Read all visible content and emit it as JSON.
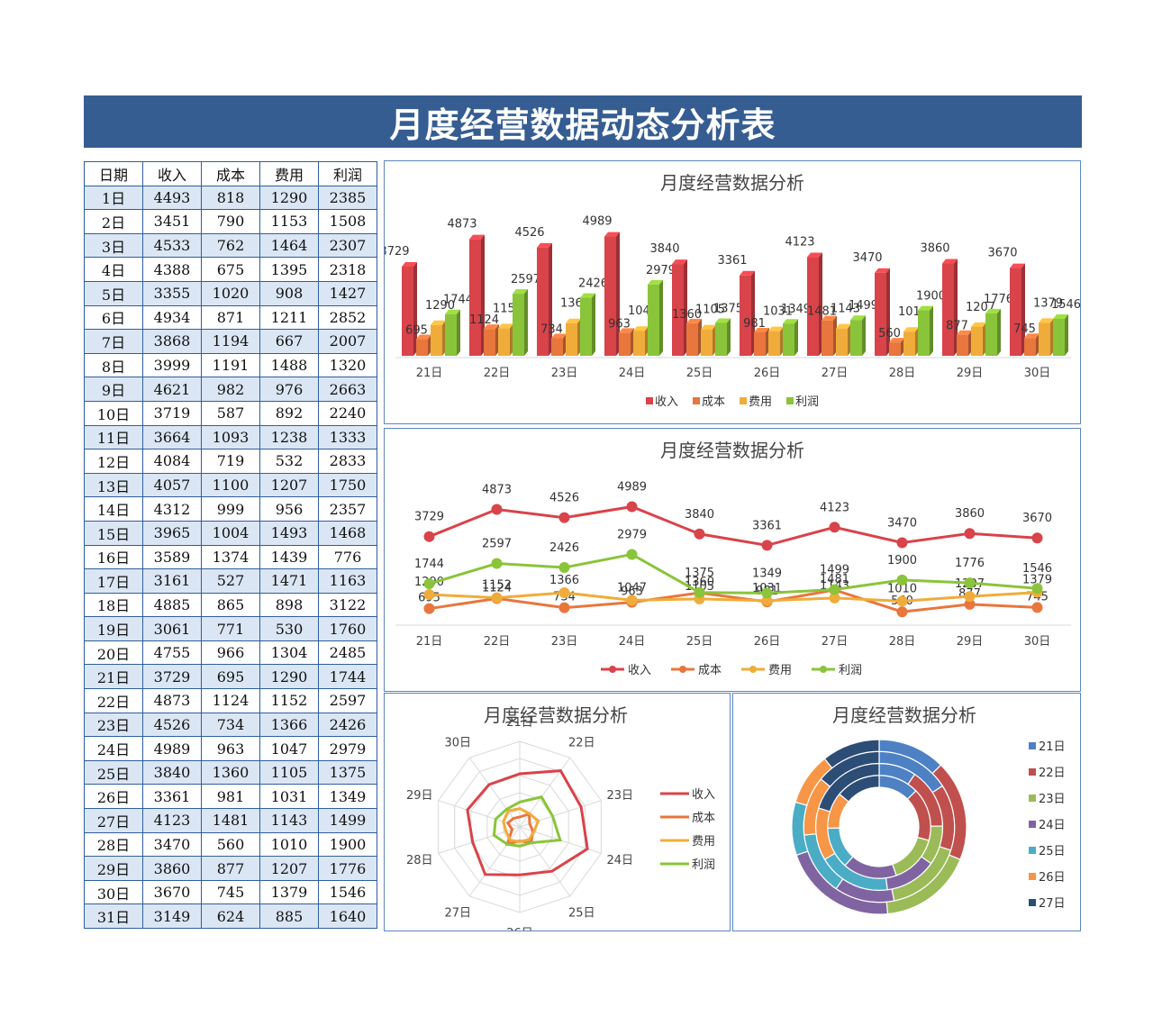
{
  "title": "月度经营数据动态分析表",
  "table": {
    "headers": [
      "日期",
      "收入",
      "成本",
      "费用",
      "利润"
    ],
    "rows": [
      [
        "1日",
        "4493",
        "818",
        "1290",
        "2385"
      ],
      [
        "2日",
        "3451",
        "790",
        "1153",
        "1508"
      ],
      [
        "3日",
        "4533",
        "762",
        "1464",
        "2307"
      ],
      [
        "4日",
        "4388",
        "675",
        "1395",
        "2318"
      ],
      [
        "5日",
        "3355",
        "1020",
        "908",
        "1427"
      ],
      [
        "6日",
        "4934",
        "871",
        "1211",
        "2852"
      ],
      [
        "7日",
        "3868",
        "1194",
        "667",
        "2007"
      ],
      [
        "8日",
        "3999",
        "1191",
        "1488",
        "1320"
      ],
      [
        "9日",
        "4621",
        "982",
        "976",
        "2663"
      ],
      [
        "10日",
        "3719",
        "587",
        "892",
        "2240"
      ],
      [
        "11日",
        "3664",
        "1093",
        "1238",
        "1333"
      ],
      [
        "12日",
        "4084",
        "719",
        "532",
        "2833"
      ],
      [
        "13日",
        "4057",
        "1100",
        "1207",
        "1750"
      ],
      [
        "14日",
        "4312",
        "999",
        "956",
        "2357"
      ],
      [
        "15日",
        "3965",
        "1004",
        "1493",
        "1468"
      ],
      [
        "16日",
        "3589",
        "1374",
        "1439",
        "776"
      ],
      [
        "17日",
        "3161",
        "527",
        "1471",
        "1163"
      ],
      [
        "18日",
        "4885",
        "865",
        "898",
        "3122"
      ],
      [
        "19日",
        "3061",
        "771",
        "530",
        "1760"
      ],
      [
        "20日",
        "4755",
        "966",
        "1304",
        "2485"
      ],
      [
        "21日",
        "3729",
        "695",
        "1290",
        "1744"
      ],
      [
        "22日",
        "4873",
        "1124",
        "1152",
        "2597"
      ],
      [
        "23日",
        "4526",
        "734",
        "1366",
        "2426"
      ],
      [
        "24日",
        "4989",
        "963",
        "1047",
        "2979"
      ],
      [
        "25日",
        "3840",
        "1360",
        "1105",
        "1375"
      ],
      [
        "26日",
        "3361",
        "981",
        "1031",
        "1349"
      ],
      [
        "27日",
        "4123",
        "1481",
        "1143",
        "1499"
      ],
      [
        "28日",
        "3470",
        "560",
        "1010",
        "1900"
      ],
      [
        "29日",
        "3860",
        "877",
        "1207",
        "1776"
      ],
      [
        "30日",
        "3670",
        "745",
        "1379",
        "1546"
      ],
      [
        "31日",
        "3149",
        "624",
        "885",
        "1640"
      ]
    ]
  },
  "colors": {
    "banner": "#355d92",
    "收入": "#d9434a",
    "成本": "#e8763d",
    "费用": "#f0ac3a",
    "利润": "#8ac43a",
    "donut": [
      "#4e81c4",
      "#c0504d",
      "#9bbb59",
      "#8064a2",
      "#4bacc6",
      "#f79646",
      "#2c4d75"
    ]
  },
  "chart_data": [
    {
      "type": "bar",
      "title": "月度经营数据分析",
      "categories": [
        "21日",
        "22日",
        "23日",
        "24日",
        "25日",
        "26日",
        "27日",
        "28日",
        "29日",
        "30日"
      ],
      "series": [
        {
          "name": "收入",
          "values": [
            3729,
            4873,
            4526,
            4989,
            3840,
            3361,
            4123,
            3470,
            3860,
            3670
          ]
        },
        {
          "name": "成本",
          "values": [
            695,
            1124,
            734,
            963,
            1360,
            981,
            1481,
            560,
            877,
            745
          ]
        },
        {
          "name": "费用",
          "values": [
            1290,
            1152,
            1366,
            1047,
            1105,
            1031,
            1143,
            1010,
            1207,
            1379
          ]
        },
        {
          "name": "利润",
          "values": [
            1744,
            2597,
            2426,
            2979,
            1375,
            1349,
            1499,
            1900,
            1776,
            1546
          ]
        }
      ],
      "ylim": [
        0,
        5500
      ],
      "legend": "bottom",
      "data_labels": true
    },
    {
      "type": "line",
      "title": "月度经营数据分析",
      "categories": [
        "21日",
        "22日",
        "23日",
        "24日",
        "25日",
        "26日",
        "27日",
        "28日",
        "29日",
        "30日"
      ],
      "series": [
        {
          "name": "收入",
          "values": [
            3729,
            4873,
            4526,
            4989,
            3840,
            3361,
            4123,
            3470,
            3860,
            3670
          ]
        },
        {
          "name": "成本",
          "values": [
            695,
            1124,
            734,
            963,
            1360,
            981,
            1481,
            560,
            877,
            745
          ]
        },
        {
          "name": "费用",
          "values": [
            1290,
            1152,
            1366,
            1047,
            1105,
            1031,
            1143,
            1010,
            1207,
            1379
          ]
        },
        {
          "name": "利润",
          "values": [
            1744,
            2597,
            2426,
            2979,
            1375,
            1349,
            1499,
            1900,
            1776,
            1546
          ]
        }
      ],
      "ylim": [
        0,
        5500
      ],
      "legend": "bottom",
      "data_labels": true
    },
    {
      "type": "radar",
      "title": "月度经营数据分析",
      "categories": [
        "21日",
        "22日",
        "23日",
        "24日",
        "25日",
        "26日",
        "27日",
        "28日",
        "29日",
        "30日"
      ],
      "series": [
        {
          "name": "收入",
          "values": [
            3729,
            4873,
            4526,
            4989,
            3840,
            3361,
            4123,
            3470,
            3860,
            3670
          ]
        },
        {
          "name": "成本",
          "values": [
            695,
            1124,
            734,
            963,
            1360,
            981,
            1481,
            560,
            877,
            745
          ]
        },
        {
          "name": "费用",
          "values": [
            1290,
            1152,
            1366,
            1047,
            1105,
            1031,
            1143,
            1010,
            1207,
            1379
          ]
        },
        {
          "name": "利润",
          "values": [
            1744,
            2597,
            2426,
            2979,
            1375,
            1349,
            1499,
            1900,
            1776,
            1546
          ]
        }
      ],
      "rmax": 6000,
      "legend": "right"
    },
    {
      "type": "donut",
      "title": "月度经营数据分析",
      "categories": [
        "21日",
        "22日",
        "23日",
        "24日",
        "25日",
        "26日",
        "27日"
      ],
      "series": [
        {
          "name": "收入",
          "values": [
            3729,
            4873,
            4526,
            4989,
            3840,
            3361,
            4123
          ]
        },
        {
          "name": "成本",
          "values": [
            695,
            1124,
            734,
            963,
            1360,
            981,
            1481
          ]
        },
        {
          "name": "费用",
          "values": [
            1290,
            1152,
            1366,
            1047,
            1105,
            1031,
            1143
          ]
        },
        {
          "name": "利润",
          "values": [
            1744,
            2597,
            2426,
            2979,
            1375,
            1349,
            1499
          ]
        }
      ],
      "legend": "right"
    }
  ]
}
